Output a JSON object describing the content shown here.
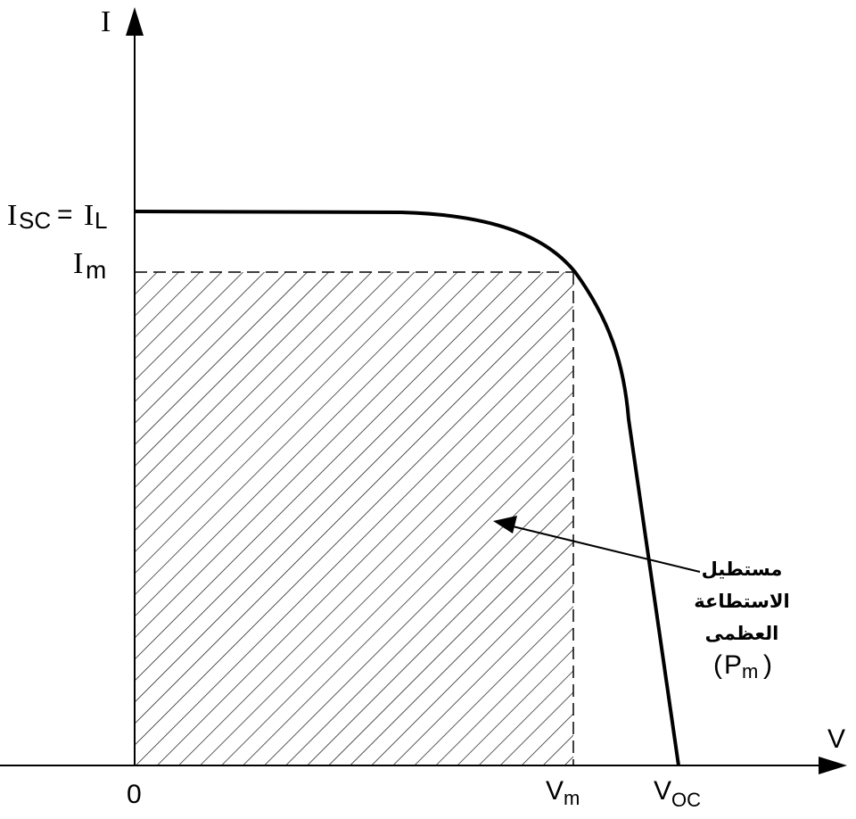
{
  "diagram": {
    "axes": {
      "y_label": "I",
      "x_label": "V",
      "origin_label": "0"
    },
    "y_ticks": {
      "isc": {
        "main": "I",
        "sub": "SC",
        "eq": "=",
        "rhs_main": "I",
        "rhs_sub": "L"
      },
      "im": {
        "main": "I",
        "sub": "m"
      }
    },
    "x_ticks": {
      "vm": {
        "main": "V",
        "sub": "m"
      },
      "voc": {
        "main": "V",
        "sub": "OC"
      }
    },
    "annotation": {
      "line1": "مستطيل",
      "line2": "الاستطاعة",
      "line3": "العظمى",
      "pm_open": "(",
      "pm_main": "P",
      "pm_sub": "m",
      "pm_close": ")"
    },
    "colors": {
      "ink": "#000000",
      "background": "#ffffff"
    }
  }
}
